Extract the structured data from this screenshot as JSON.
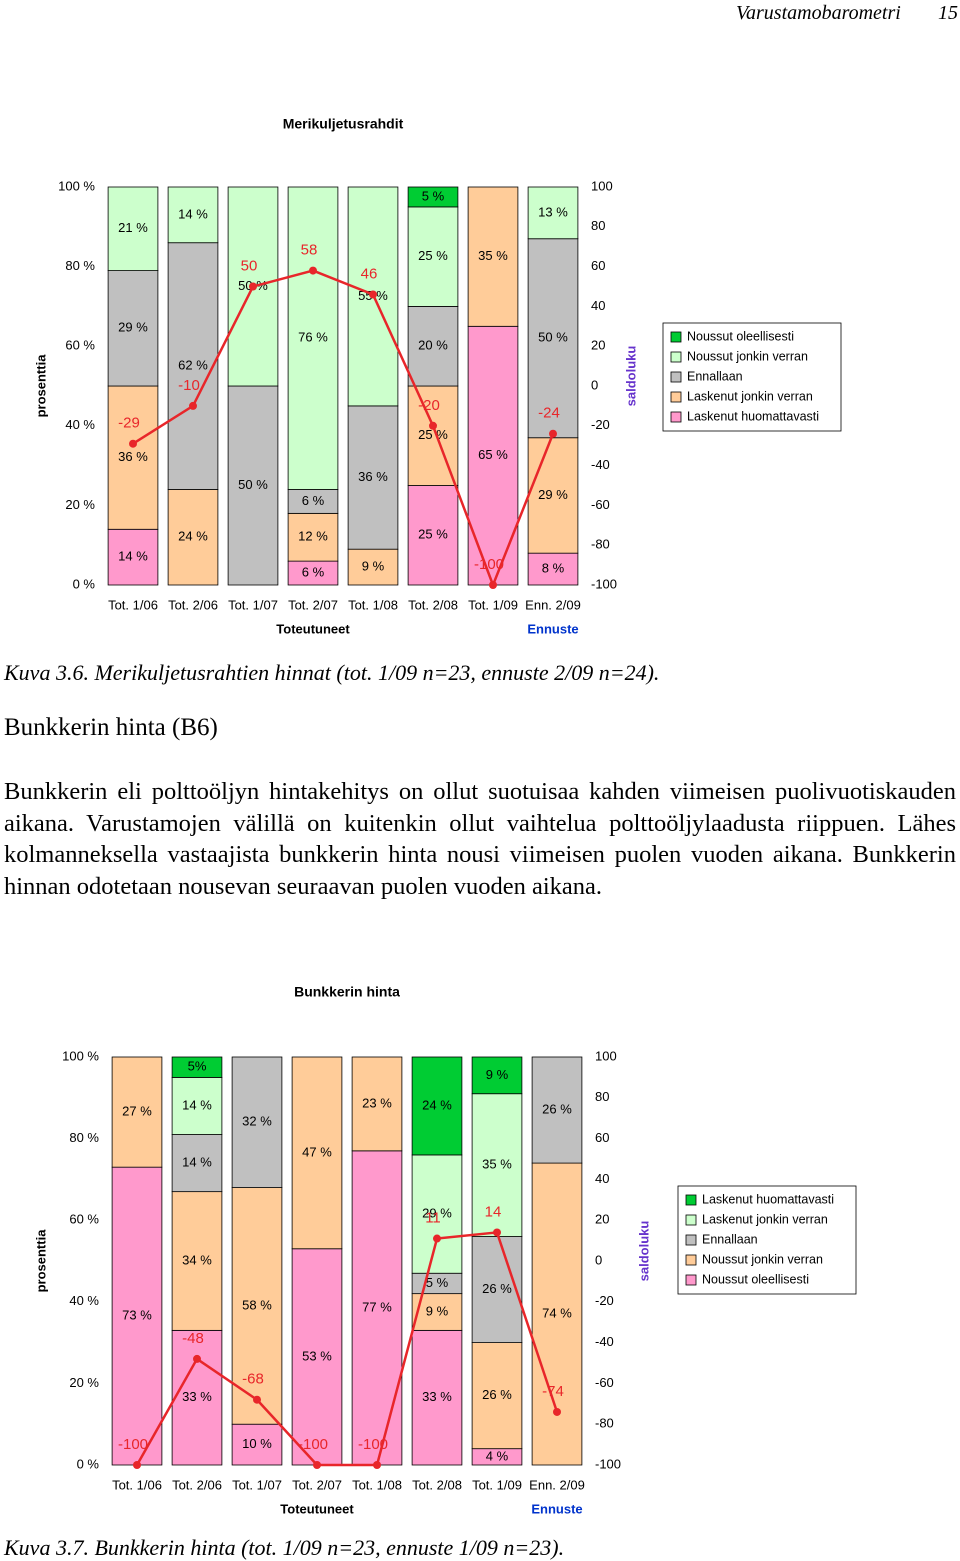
{
  "header": {
    "title": "Varustamobarometri",
    "page": "15"
  },
  "chart_data": [
    {
      "type": "bar",
      "title": "Merikuljetusrahdit",
      "ylabel": "prosenttia",
      "y2label": "saldoluku",
      "categories": [
        "Tot. 1/06",
        "Tot. 2/06",
        "Tot. 1/07",
        "Tot. 2/07",
        "Tot. 1/08",
        "Tot. 2/08",
        "Tot. 1/09",
        "Enn. 2/09"
      ],
      "x_groups": [
        "Toteutuneet",
        "Ennuste"
      ],
      "ylim": [
        0,
        100
      ],
      "yticks": [
        {
          "value": 0,
          "label": "0 %"
        },
        {
          "value": 20,
          "label": "20 %"
        },
        {
          "value": 40,
          "label": "40 %"
        },
        {
          "value": 60,
          "label": "60 %"
        },
        {
          "value": 80,
          "label": "80 %"
        },
        {
          "value": 100,
          "label": "100 %"
        }
      ],
      "y2lim": [
        -100,
        100
      ],
      "y2ticks": [
        -100,
        -80,
        -60,
        -40,
        -20,
        0,
        20,
        40,
        60,
        80,
        100
      ],
      "stacked": true,
      "legend": "right",
      "series": [
        {
          "name": "Noussut oleellisesti",
          "color": "#00cc33",
          "values": [
            0,
            0,
            0,
            0,
            0,
            5,
            0,
            0
          ],
          "value_labels": [
            null,
            null,
            null,
            null,
            null,
            "5 %",
            null,
            null
          ]
        },
        {
          "name": "Noussut jonkin verran",
          "color": "#ccffcc",
          "values": [
            21,
            14,
            50,
            76,
            55,
            25,
            0,
            13
          ],
          "value_labels": [
            "21 %",
            "14 %",
            "50 %",
            "76 %",
            "55 %",
            "25 %",
            null,
            "13 %"
          ]
        },
        {
          "name": "Ennallaan",
          "color": "#c0c0c0",
          "values": [
            29,
            62,
            50,
            6,
            36,
            20,
            0,
            50
          ],
          "value_labels": [
            "29 %",
            "62 %",
            "50 %",
            "6 %",
            "36 %",
            "20 %",
            null,
            "50 %"
          ]
        },
        {
          "name": "Laskenut jonkin verran",
          "color": "#ffcc99",
          "values": [
            36,
            24,
            0,
            12,
            9,
            25,
            35,
            29
          ],
          "value_labels": [
            "36 %",
            "24 %",
            null,
            "12 %",
            "9 %",
            "25 %",
            "35 %",
            "29 %"
          ]
        },
        {
          "name": "Laskenut huomattavasti",
          "color": "#ff99cc",
          "values": [
            14,
            0,
            0,
            6,
            0,
            25,
            65,
            8
          ],
          "value_labels": [
            "14 %",
            null,
            null,
            "6 %",
            null,
            "25 %",
            "65 %",
            "8 %"
          ]
        },
        {
          "type": "line",
          "axis": "y2",
          "color": "#e8262a",
          "values": [
            -29,
            -10,
            50,
            58,
            46,
            -20,
            -100,
            -24
          ]
        }
      ]
    },
    {
      "type": "bar",
      "title": "Bunkkerin hinta",
      "ylabel": "prosenttia",
      "y2label": "saldoluku",
      "categories": [
        "Tot. 1/06",
        "Tot. 2/06",
        "Tot. 1/07",
        "Tot. 2/07",
        "Tot. 1/08",
        "Tot. 2/08",
        "Tot. 1/09",
        "Enn. 2/09"
      ],
      "x_groups": [
        "Toteutuneet",
        "Ennuste"
      ],
      "ylim": [
        0,
        100
      ],
      "yticks": [
        {
          "value": 0,
          "label": "0 %"
        },
        {
          "value": 20,
          "label": "20 %"
        },
        {
          "value": 40,
          "label": "40 %"
        },
        {
          "value": 60,
          "label": "60 %"
        },
        {
          "value": 80,
          "label": "80 %"
        },
        {
          "value": 100,
          "label": "100 %"
        }
      ],
      "y2lim": [
        -100,
        100
      ],
      "y2ticks": [
        -100,
        -80,
        -60,
        -40,
        -20,
        0,
        20,
        40,
        60,
        80,
        100
      ],
      "stacked": true,
      "legend": "right",
      "series": [
        {
          "name": "Laskenut huomattavasti",
          "color": "#00cc33",
          "values": [
            0,
            5,
            0,
            0,
            0,
            24,
            9,
            0
          ],
          "value_labels": [
            null,
            "5%",
            null,
            null,
            null,
            "24 %",
            "9 %",
            null
          ]
        },
        {
          "name": "Laskenut jonkin verran",
          "color": "#ccffcc",
          "values": [
            0,
            14,
            0,
            0,
            0,
            29,
            35,
            0
          ],
          "value_labels": [
            null,
            "14 %",
            null,
            null,
            null,
            "29 %",
            "35 %",
            null
          ]
        },
        {
          "name": "Ennallaan",
          "color": "#c0c0c0",
          "values": [
            0,
            14,
            32,
            0,
            0,
            5,
            26,
            26
          ],
          "value_labels": [
            null,
            "14 %",
            "32 %",
            null,
            null,
            "5 %",
            "26 %",
            "26 %"
          ]
        },
        {
          "name": "Noussut jonkin verran",
          "color": "#ffcc99",
          "values": [
            27,
            34,
            58,
            47,
            23,
            9,
            26,
            74
          ],
          "value_labels": [
            "27 %",
            "34 %",
            "58 %",
            "47 %",
            "23 %",
            "9 %",
            "26 %",
            "74 %"
          ]
        },
        {
          "name": "Noussut oleellisesti",
          "color": "#ff99cc",
          "values": [
            73,
            33,
            10,
            53,
            77,
            33,
            4,
            0
          ],
          "value_labels": [
            "73 %",
            "33 %",
            "10 %",
            "53 %",
            "77 %",
            "33 %",
            "4 %",
            null
          ]
        },
        {
          "type": "line",
          "axis": "y2",
          "color": "#e8262a",
          "values": [
            -100,
            -48,
            -68,
            -100,
            -100,
            11,
            14,
            -74
          ]
        }
      ]
    }
  ],
  "captions": [
    "Kuva 3.6. Merikuljetusrahtien hinnat (tot. 1/09 n=23, ennuste 2/09 n=24).",
    "Kuva 3.7. Bunkkerin hinta (tot. 1/09 n=23, ennuste 1/09 n=23)."
  ],
  "heading": "Bunkkerin hinta (B6)",
  "paragraph": "Bunkkerin eli polttoöljyn hintakehitys on ollut suotuisaa kahden viimeisen puolivuotiskauden aikana. Varustamojen välillä on kuitenkin ollut vaihtelua polttoöljylaadusta riippuen. Lähes kolmanneksella vastaajista bunkkerin hinta nousi viimeisen puolen vuoden aikana. Bunkkerin hinnan odotetaan nousevan seuraavan puolen vuoden aikana."
}
